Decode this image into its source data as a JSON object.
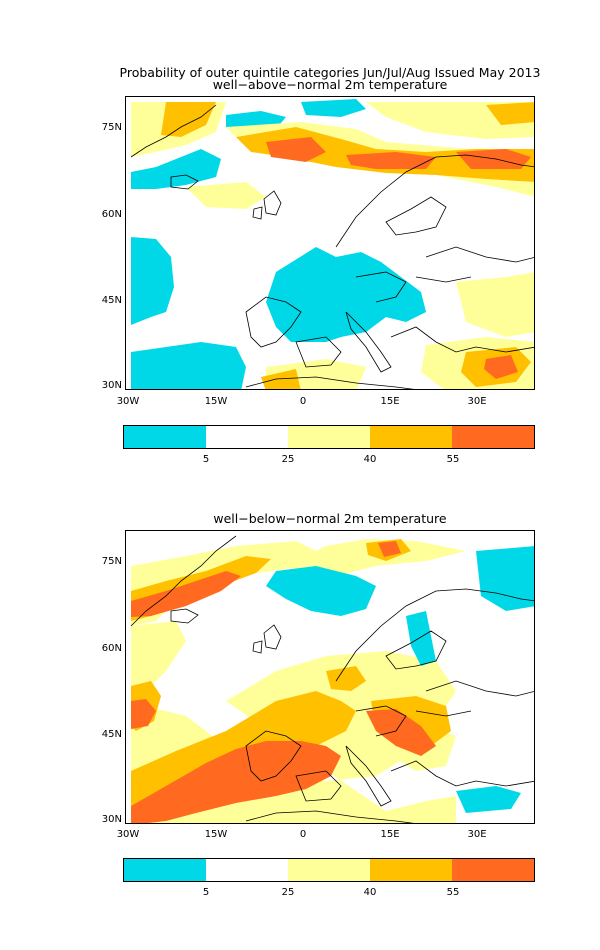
{
  "figure": {
    "title_line1": "Probability of outer quintile categories Jun/Jul/Aug Issued May 2013",
    "panels": [
      {
        "subtitle": "well−above−normal 2m temperature"
      },
      {
        "subtitle": "well−below−normal 2m temperature"
      }
    ]
  },
  "axes": {
    "lat_labels": [
      "75N",
      "60N",
      "45N",
      "30N"
    ],
    "lon_labels": [
      "30W",
      "15W",
      "0",
      "15E",
      "30E"
    ]
  },
  "colorbar": {
    "thresholds": [
      "5",
      "25",
      "40",
      "55"
    ],
    "colors": [
      "#00d8e8",
      "#ffffff",
      "#ffff99",
      "#ffc000",
      "#ff6a20"
    ]
  },
  "palette": {
    "cyan": "#00d8e8",
    "light_yellow": "#ffff99",
    "gold": "#ffc000",
    "orange": "#ff6a20",
    "coast": "#000000"
  }
}
